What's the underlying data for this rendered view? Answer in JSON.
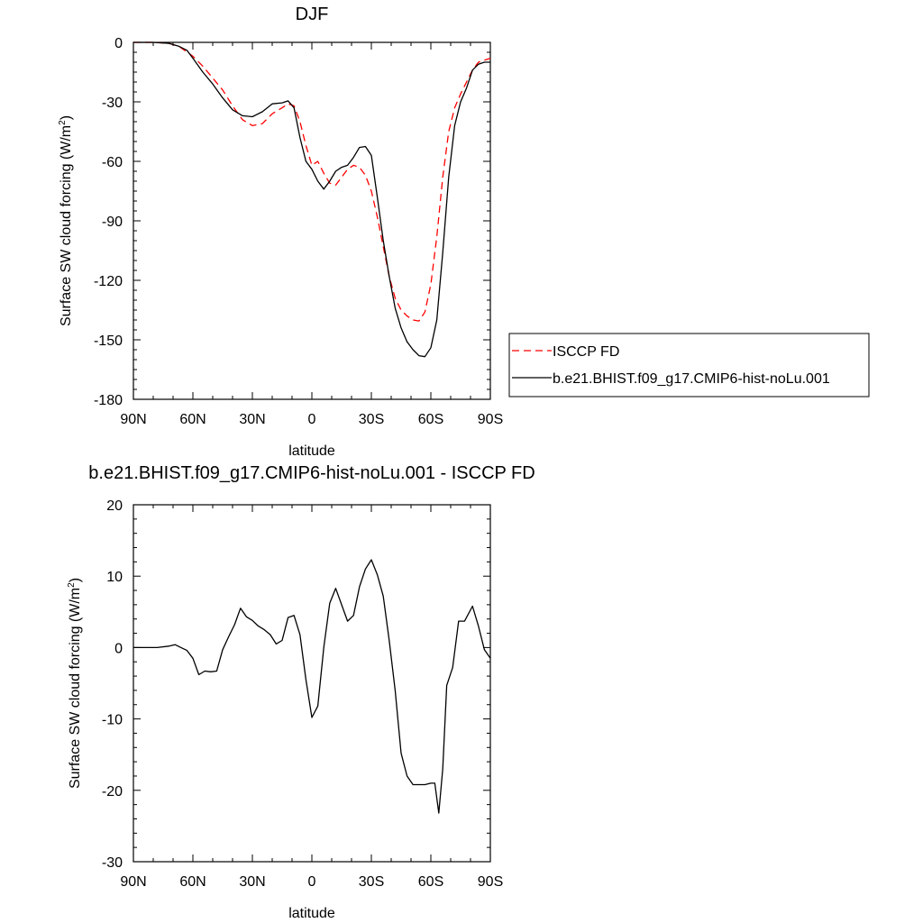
{
  "chart_data": [
    {
      "type": "line",
      "title": "DJF",
      "xlabel": "latitude",
      "ylabel": "Surface SW cloud forcing (W/m",
      "ylabel_sup": "2",
      "ylabel_close": ")",
      "xlim": [
        90,
        -90
      ],
      "ylim": [
        -180,
        0
      ],
      "x_ticks": [
        90,
        60,
        30,
        0,
        -30,
        -60,
        -90
      ],
      "x_tick_labels": [
        "90N",
        "60N",
        "30N",
        "0",
        "30S",
        "60S",
        "90S"
      ],
      "y_ticks": [
        0,
        -30,
        -60,
        -90,
        -120,
        -150,
        -180
      ],
      "y_tick_labels": [
        "0",
        "-30",
        "-60",
        "-90",
        "-120",
        "-150",
        "-180"
      ],
      "legend_position": "right, outside plot",
      "grid": false,
      "series": [
        {
          "name": "ISCCP FD",
          "color": "#ff0000",
          "dash": "dashed",
          "x": [
            90,
            80,
            72,
            67,
            60,
            55,
            50,
            45,
            40,
            35,
            30,
            25,
            20,
            15,
            12,
            9,
            6,
            3,
            0,
            -3,
            -6,
            -9,
            -12,
            -15,
            -18,
            -21,
            -24,
            -27,
            -30,
            -33,
            -36,
            -39,
            -42,
            -45,
            -48,
            -51,
            -54,
            -57,
            -60,
            -63,
            -66,
            -69,
            -72,
            -75,
            -78,
            -81,
            -84,
            -87,
            -90
          ],
          "y": [
            0,
            0,
            -0.5,
            -2,
            -7,
            -12,
            -18,
            -24,
            -32,
            -39,
            -42,
            -41,
            -36,
            -33,
            -31,
            -32,
            -40,
            -52,
            -62,
            -60,
            -66,
            -71,
            -72,
            -68,
            -64,
            -62,
            -63,
            -67,
            -75,
            -88,
            -103,
            -118,
            -129,
            -135,
            -138,
            -140,
            -140.5,
            -136,
            -122,
            -98,
            -68,
            -45,
            -33,
            -26,
            -20,
            -14,
            -10,
            -9,
            -8
          ]
        },
        {
          "name": "b.e21.BHIST.f09_g17.CMIP6-hist-noLu.001",
          "color": "#000000",
          "dash": "solid",
          "x": [
            90,
            80,
            72,
            67,
            63,
            60,
            55,
            50,
            45,
            40,
            35,
            30,
            25,
            20,
            15,
            12,
            9,
            6,
            3,
            0,
            -3,
            -6,
            -9,
            -12,
            -15,
            -18,
            -21,
            -24,
            -27,
            -30,
            -33,
            -36,
            -39,
            -42,
            -45,
            -48,
            -51,
            -54,
            -57,
            -60,
            -63,
            -66,
            -69,
            -72,
            -75,
            -78,
            -81,
            -84,
            -87,
            -90
          ],
          "y": [
            0,
            0,
            -0.5,
            -2,
            -4,
            -8,
            -15,
            -21,
            -28,
            -34,
            -37,
            -37.5,
            -35,
            -31,
            -30.5,
            -29.5,
            -33,
            -48,
            -60,
            -64,
            -70,
            -74,
            -70,
            -65,
            -63,
            -62,
            -58,
            -53,
            -52.5,
            -57,
            -78,
            -100,
            -118,
            -134,
            -144,
            -151,
            -155,
            -158,
            -158.5,
            -154,
            -140,
            -106,
            -68,
            -42,
            -30,
            -23,
            -14,
            -11,
            -10,
            -10
          ]
        }
      ]
    },
    {
      "type": "line",
      "title": "b.e21.BHIST.f09_g17.CMIP6-hist-noLu.001 - ISCCP FD",
      "xlabel": "latitude",
      "ylabel": "Surface SW cloud forcing (W/m",
      "ylabel_sup": "2",
      "ylabel_close": ")",
      "xlim": [
        90,
        -90
      ],
      "ylim": [
        -30,
        20
      ],
      "x_ticks": [
        90,
        60,
        30,
        0,
        -30,
        -60,
        -90
      ],
      "x_tick_labels": [
        "90N",
        "60N",
        "30N",
        "0",
        "30S",
        "60S",
        "90S"
      ],
      "y_ticks": [
        20,
        10,
        0,
        -10,
        -20,
        -30
      ],
      "y_tick_labels": [
        "20",
        "10",
        "0",
        "-10",
        "-20",
        "-30"
      ],
      "grid": false,
      "series": [
        {
          "color": "#000000",
          "dash": "solid",
          "x": [
            90,
            84,
            78,
            72,
            69,
            66,
            63,
            60,
            57,
            54,
            51,
            48,
            45,
            42,
            39,
            36,
            33,
            30,
            27,
            24,
            21,
            18,
            15,
            12,
            9,
            6,
            3,
            0,
            -3,
            -6,
            -9,
            -12,
            -15,
            -18,
            -21,
            -24,
            -27,
            -30,
            -33,
            -36,
            -39,
            -42,
            -45,
            -48,
            -51,
            -54,
            -57,
            -60,
            -62,
            -64,
            -66,
            -68,
            -71,
            -74,
            -77,
            -81,
            -84,
            -87,
            -90
          ],
          "y": [
            0,
            0,
            0,
            0.2,
            0.4,
            0,
            -0.4,
            -1.5,
            -3.8,
            -3.3,
            -3.4,
            -3.3,
            -0.3,
            1.5,
            3.2,
            5.5,
            4.3,
            3.8,
            3,
            2.5,
            1.8,
            0.5,
            1,
            4.2,
            4.5,
            1.8,
            -4.5,
            -9.8,
            -8.2,
            0,
            6.2,
            8.3,
            6,
            3.7,
            4.5,
            8.5,
            11,
            12.3,
            10.2,
            7.2,
            1,
            -6,
            -14.8,
            -18,
            -19.2,
            -19.2,
            -19.2,
            -19,
            -19,
            -23.2,
            -17,
            -5.3,
            -2.8,
            3.7,
            3.7,
            5.8,
            3,
            -0.3,
            -1.5
          ]
        }
      ]
    }
  ]
}
